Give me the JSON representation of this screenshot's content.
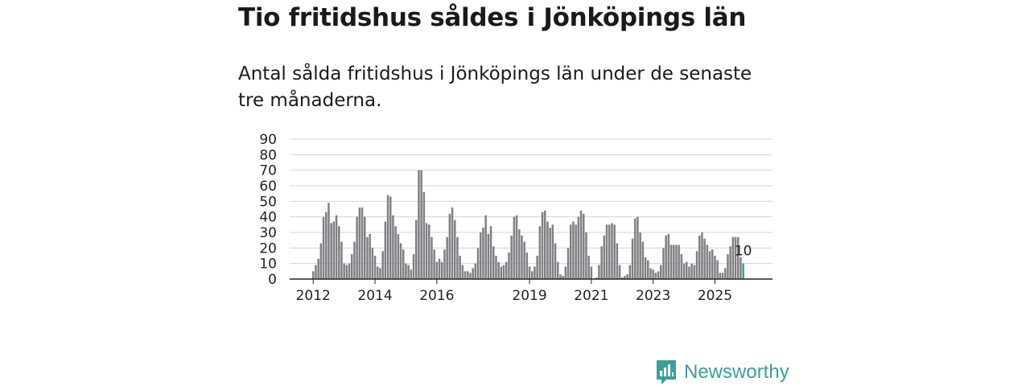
{
  "header": {
    "title": "Tio fritidshus såldes i Jönköpings län",
    "subtitle": "Antal sålda fritidshus i Jönköpings län under de senaste tre månaderna."
  },
  "logo": {
    "text": "Newsworthy",
    "icon": "bar-chart-speech-bubble-icon",
    "color": "#3d9e98"
  },
  "colors": {
    "bar": "#808084",
    "highlight": "#26a69a",
    "grid": "#d4d4d4",
    "axis": "#222222"
  },
  "chart_data": {
    "type": "bar",
    "title": "Tio fritidshus såldes i Jönköpings län",
    "ylim": [
      0,
      90
    ],
    "yticks": [
      0,
      10,
      20,
      30,
      40,
      50,
      60,
      70,
      80,
      90
    ],
    "xticks": [
      {
        "label": "2012",
        "x": "2012-01"
      },
      {
        "label": "2014",
        "x": "2014-01"
      },
      {
        "label": "2016",
        "x": "2016-01"
      },
      {
        "label": "2019",
        "x": "2019-01"
      },
      {
        "label": "2021",
        "x": "2021-01"
      },
      {
        "label": "2023",
        "x": "2023-01"
      },
      {
        "label": "2025",
        "x": "2025-01"
      }
    ],
    "grid": true,
    "start_month": "2012-01",
    "values": [
      5,
      9,
      13,
      23,
      40,
      43,
      49,
      36,
      37,
      41,
      34,
      24,
      10,
      9,
      10,
      16,
      24,
      40,
      46,
      46,
      40,
      27,
      29,
      20,
      15,
      8,
      7,
      18,
      37,
      54,
      53,
      41,
      34,
      29,
      23,
      19,
      10,
      9,
      6,
      16,
      38,
      70,
      70,
      56,
      36,
      35,
      27,
      19,
      11,
      13,
      11,
      19,
      27,
      42,
      46,
      38,
      27,
      15,
      9,
      5,
      5,
      4,
      7,
      10,
      20,
      30,
      33,
      41,
      29,
      34,
      21,
      15,
      11,
      8,
      9,
      11,
      17,
      28,
      40,
      41,
      32,
      28,
      24,
      17,
      8,
      5,
      8,
      15,
      34,
      43,
      44,
      37,
      33,
      35,
      23,
      11,
      3,
      2,
      8,
      20,
      35,
      37,
      35,
      40,
      44,
      42,
      30,
      15,
      8,
      0,
      1,
      9,
      21,
      28,
      35,
      35,
      36,
      35,
      23,
      9,
      1,
      2,
      3,
      9,
      26,
      39,
      40,
      30,
      24,
      14,
      12,
      7,
      6,
      4,
      5,
      9,
      20,
      28,
      29,
      22,
      22,
      22,
      22,
      16,
      10,
      11,
      8,
      10,
      9,
      18,
      28,
      30,
      26,
      22,
      18,
      19,
      15,
      12,
      4,
      4,
      7,
      16,
      21,
      27,
      27,
      27,
      14,
      10
    ],
    "highlight_last": 1,
    "last_label": "10"
  }
}
